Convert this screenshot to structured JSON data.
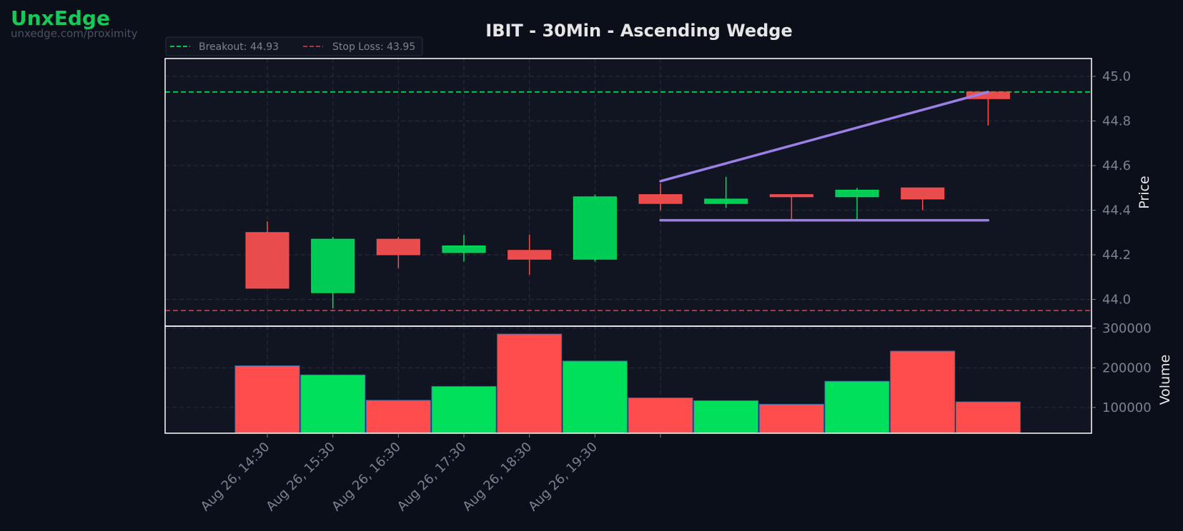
{
  "brand": {
    "name": "UnxEdge",
    "url": "unxedge.com/proximity"
  },
  "colors": {
    "background": "#0b0f19",
    "panel": "#111522",
    "up": "#00e05a",
    "up_body": "#00cc55",
    "down": "#ff4d4d",
    "down_body": "#e84c4c",
    "breakout": "#00c853",
    "stoploss": "#e0404f",
    "wedge": "#9b7fe6",
    "grid": "#2a2f3d",
    "text": "#e6e6e6",
    "tick": "#7c8290"
  },
  "chart_data": {
    "type": "candlestick",
    "title": "IBIT - 30Min - Ascending Wedge",
    "ylabel": "Price",
    "ylabel_volume": "Volume",
    "ylim": [
      43.88,
      45.08
    ],
    "volume_ylim": [
      35000,
      305000
    ],
    "price_ticks": [
      "44.0",
      "44.2",
      "44.4",
      "44.6",
      "44.8",
      "45.0"
    ],
    "volume_ticks": [
      "100000",
      "200000",
      "300000"
    ],
    "x_ticks": [
      "Aug 26, 14:30",
      "Aug 26, 15:30",
      "Aug 26, 16:30",
      "Aug 26, 17:30",
      "Aug 26, 18:30",
      "Aug 26, 19:30",
      ""
    ],
    "candles": [
      {
        "open": 44.3,
        "high": 44.35,
        "low": 44.05,
        "close": 44.05,
        "volume": 205000
      },
      {
        "open": 44.03,
        "high": 44.28,
        "low": 43.96,
        "close": 44.27,
        "volume": 182000
      },
      {
        "open": 44.27,
        "high": 44.28,
        "low": 44.14,
        "close": 44.2,
        "volume": 118000
      },
      {
        "open": 44.21,
        "high": 44.29,
        "low": 44.17,
        "close": 44.24,
        "volume": 153000
      },
      {
        "open": 44.22,
        "high": 44.29,
        "low": 44.11,
        "close": 44.18,
        "volume": 285000
      },
      {
        "open": 44.18,
        "high": 44.47,
        "low": 44.17,
        "close": 44.46,
        "volume": 217000
      },
      {
        "open": 44.47,
        "high": 44.52,
        "low": 44.4,
        "close": 44.43,
        "volume": 124000
      },
      {
        "open": 44.43,
        "high": 44.55,
        "low": 44.41,
        "close": 44.45,
        "volume": 117000
      },
      {
        "open": 44.47,
        "high": 44.47,
        "low": 44.36,
        "close": 44.46,
        "volume": 108000
      },
      {
        "open": 44.46,
        "high": 44.5,
        "low": 44.36,
        "close": 44.49,
        "volume": 166000
      },
      {
        "open": 44.5,
        "high": 44.5,
        "low": 44.4,
        "close": 44.45,
        "volume": 242000
      },
      {
        "open": 44.93,
        "high": 44.93,
        "low": 44.78,
        "close": 44.9,
        "volume": 114000
      }
    ],
    "breakout": {
      "label": "Breakout: 44.93",
      "value": 44.93
    },
    "stop_loss": {
      "label": "Stop Loss: 43.95",
      "value": 43.95
    },
    "wedge_upper": {
      "from": [
        6,
        44.53
      ],
      "to": [
        11,
        44.93
      ]
    },
    "wedge_lower": {
      "from": [
        6,
        44.355
      ],
      "to": [
        11,
        44.355
      ]
    },
    "grid": true,
    "legend": "top-left"
  }
}
